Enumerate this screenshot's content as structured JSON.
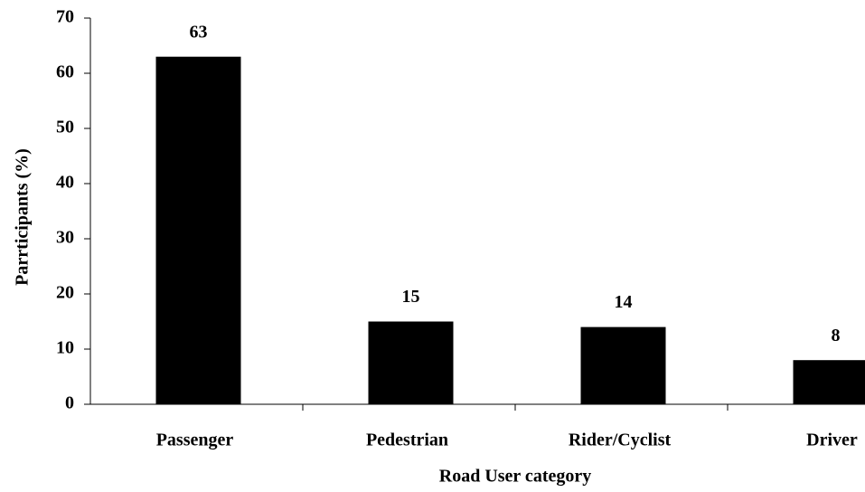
{
  "chart_data": {
    "type": "bar",
    "categories": [
      "Passenger",
      "Pedestrian",
      "Rider/Cyclist",
      "Driver"
    ],
    "values": [
      63,
      15,
      14,
      8
    ],
    "color": "#000000",
    "xlabel": "Road User category",
    "ylabel": "Parrticipants (%)",
    "ylim": [
      0,
      70
    ],
    "yticks": [
      0,
      10,
      20,
      30,
      40,
      50,
      60,
      70
    ],
    "grid": false
  }
}
